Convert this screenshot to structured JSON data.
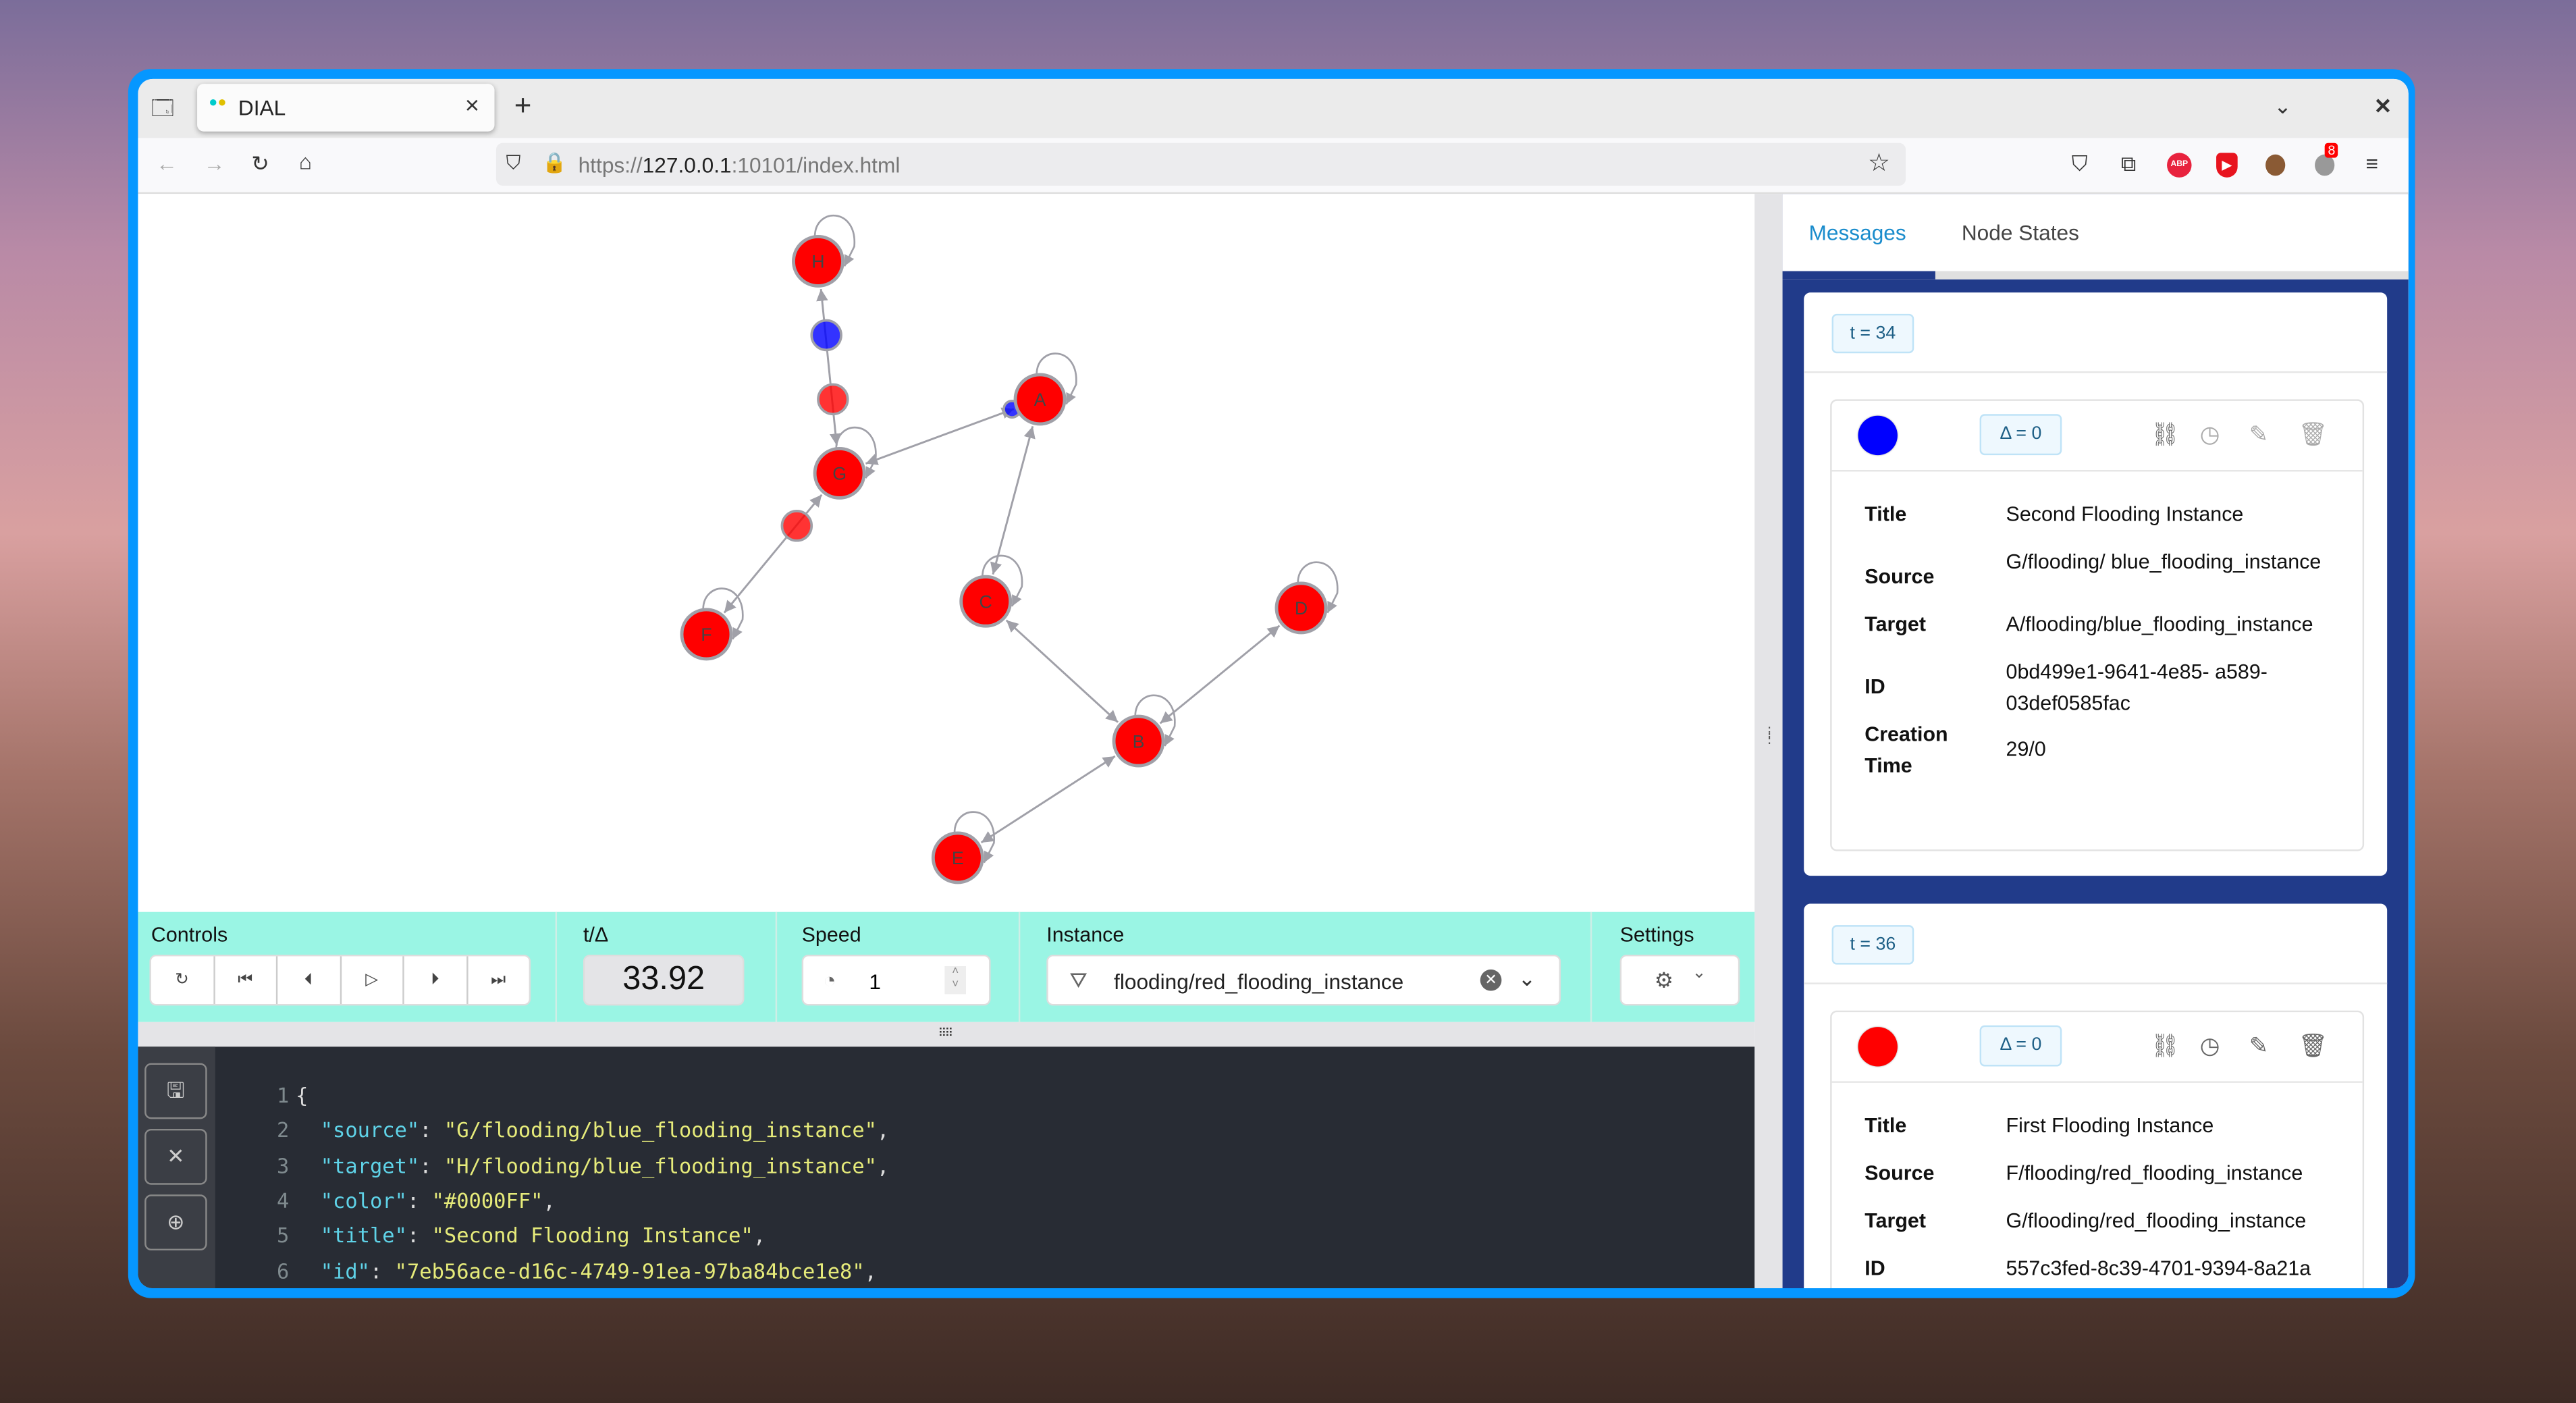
{
  "browser": {
    "tab_title": "DIAL",
    "tab_close": "×",
    "new_tab": "+",
    "url_prefix": "https://",
    "url_host": "127.0.0.1",
    "url_rest": ":10101/index.html",
    "extension_badge": "8",
    "icons": [
      "tab-list-icon",
      "back-icon",
      "forward-icon",
      "reload-icon",
      "home-icon",
      "shield-icon",
      "lock-icon",
      "bookmark-star-icon",
      "pocket-icon",
      "extensions-icon",
      "adblock-icon",
      "shield-play-icon",
      "cookie-icon",
      "extension-badge-icon",
      "menu-icon"
    ]
  },
  "graph": {
    "nodes": [
      {
        "label": "H",
        "color": "#FF0000"
      },
      {
        "label": "G",
        "color": "#FF0000"
      },
      {
        "label": "A",
        "color": "#FF0000"
      },
      {
        "label": "C",
        "color": "#FF0000"
      },
      {
        "label": "F",
        "color": "#FF0000"
      },
      {
        "label": "D",
        "color": "#FF0000"
      },
      {
        "label": "B",
        "color": "#FF0000"
      },
      {
        "label": "E",
        "color": "#FF0000"
      }
    ],
    "edges": [
      [
        "G",
        "H"
      ],
      [
        "G",
        "A"
      ],
      [
        "G",
        "F"
      ],
      [
        "A",
        "C"
      ],
      [
        "C",
        "B"
      ],
      [
        "B",
        "D"
      ],
      [
        "B",
        "E"
      ]
    ],
    "messages_in_flight": [
      {
        "source": "G",
        "target": "H",
        "color": "#0000FF"
      },
      {
        "source": "H",
        "target": "G",
        "color": "#FF0000"
      },
      {
        "source": "F",
        "target": "G",
        "color": "#FF0000"
      },
      {
        "source": "G",
        "target": "A",
        "color": "#0000FF"
      }
    ]
  },
  "controls": {
    "label": "Controls",
    "buttons": [
      {
        "name": "reset",
        "glyph": "↻"
      },
      {
        "name": "jump-start",
        "glyph": "⏮"
      },
      {
        "name": "step-back",
        "glyph": "⏴"
      },
      {
        "name": "play",
        "glyph": "▷"
      },
      {
        "name": "step-forward",
        "glyph": "⏵"
      },
      {
        "name": "jump-end",
        "glyph": "⏭"
      }
    ],
    "time_label": "t/Δ",
    "time_value": "33.92",
    "speed_label": "Speed",
    "speed_value": "1",
    "instance_label": "Instance",
    "instance_value": "flooding/red_flooding_instance",
    "settings_label": "Settings"
  },
  "editor": {
    "buttons": [
      "save",
      "discard",
      "add"
    ],
    "lines": [
      {
        "n": "1",
        "text": "{"
      },
      {
        "n": "2",
        "key": "\"source\"",
        "value": "\"G/flooding/blue_flooding_instance\""
      },
      {
        "n": "3",
        "key": "\"target\"",
        "value": "\"H/flooding/blue_flooding_instance\""
      },
      {
        "n": "4",
        "key": "\"color\"",
        "value": "\"#0000FF\""
      },
      {
        "n": "5",
        "key": "\"title\"",
        "value": "\"Second Flooding Instance\""
      },
      {
        "n": "6",
        "key": "\"id\"",
        "value": "\"7eb56ace-d16c-4749-91ea-97ba84bce1e8\""
      }
    ]
  },
  "panel": {
    "tabs": [
      {
        "label": "Messages",
        "active": true
      },
      {
        "label": "Node States",
        "active": false
      }
    ],
    "cards": [
      {
        "time": "t = 34",
        "color": "#0000FF",
        "delta": "Δ = 0",
        "rows": [
          {
            "label": "Title",
            "value": "Second Flooding Instance"
          },
          {
            "label": "Source",
            "value": "G/flooding/ blue_flooding_instance"
          },
          {
            "label": "Target",
            "value": "A/flooding/blue_flooding_instance"
          },
          {
            "label": "ID",
            "value": "0bd499e1-9641-4e85- a589-03def0585fac"
          },
          {
            "label": "Creation Time",
            "value": "29/0"
          }
        ]
      },
      {
        "time": "t = 36",
        "color": "#FF0000",
        "delta": "Δ = 0",
        "rows": [
          {
            "label": "Title",
            "value": "First Flooding Instance"
          },
          {
            "label": "Source",
            "value": "F/flooding/red_flooding_instance"
          },
          {
            "label": "Target",
            "value": "G/flooding/red_flooding_instance"
          },
          {
            "label": "ID",
            "value": "557c3fed-8c39-4701-9394-8a21a"
          }
        ]
      }
    ]
  },
  "colors": {
    "window_border": "#0697FF",
    "controls_bg": "#9AF5E4",
    "panel_bg": "#213B8A",
    "active_tab": "#1A8CCC",
    "editor_bg": "#282C34"
  }
}
